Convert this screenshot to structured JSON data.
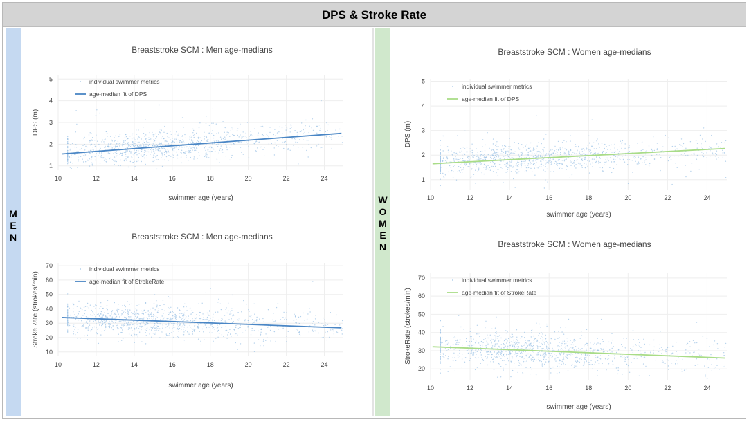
{
  "page_title": "DPS & Stroke Rate",
  "colors": {
    "men_strip": "#c5d9f1",
    "women_strip": "#d0e8cc",
    "men_line": "#4a86c5",
    "women_line": "#a9dc87",
    "scatter": "#9ec3e6"
  },
  "sections": {
    "men_label": "MEN",
    "women_label": "WOMEN"
  },
  "chart_data": [
    {
      "id": "men-dps",
      "type": "scatter",
      "title": "Breaststroke SCM : Men age-medians",
      "xlabel": "swimmer age (years)",
      "ylabel": "DPS (m)",
      "xlim": [
        10,
        25
      ],
      "ylim": [
        0.8,
        5.2
      ],
      "xticks": [
        10,
        12,
        14,
        16,
        18,
        20,
        22,
        24
      ],
      "yticks": [
        1,
        2,
        3,
        4,
        5
      ],
      "grid": true,
      "legend": "top-left",
      "series": [
        {
          "name": "individual swimmer metrics",
          "kind": "scatter",
          "mean_start": 1.6,
          "mean_end": 2.45,
          "spread": 0.35,
          "count": 1100
        },
        {
          "name": "age-median fit of DPS",
          "kind": "line",
          "x": [
            10.2,
            24.9
          ],
          "y": [
            1.55,
            2.5
          ]
        }
      ]
    },
    {
      "id": "men-sr",
      "type": "scatter",
      "title": "Breaststroke SCM : Men age-medians",
      "xlabel": "swimmer age (years)",
      "ylabel": "StrokeRate (strokes/min)",
      "xlim": [
        10,
        25
      ],
      "ylim": [
        7,
        72
      ],
      "xticks": [
        10,
        12,
        14,
        16,
        18,
        20,
        22,
        24
      ],
      "yticks": [
        10,
        20,
        30,
        40,
        50,
        60,
        70
      ],
      "grid": true,
      "legend": "top-left",
      "series": [
        {
          "name": "individual swimmer metrics",
          "kind": "scatter",
          "mean_start": 34,
          "mean_end": 27,
          "spread": 5.5,
          "count": 1100
        },
        {
          "name": "age-median fit of StrokeRate",
          "kind": "line",
          "x": [
            10.2,
            24.9
          ],
          "y": [
            34,
            26.8
          ]
        }
      ]
    },
    {
      "id": "women-dps",
      "type": "scatter",
      "title": "Breaststroke SCM : Women age-medians",
      "xlabel": "swimmer age (years)",
      "ylabel": "DPS (m)",
      "xlim": [
        10,
        25
      ],
      "ylim": [
        0.6,
        5.1
      ],
      "xticks": [
        10,
        12,
        14,
        16,
        18,
        20,
        22,
        24
      ],
      "yticks": [
        1,
        2,
        3,
        4,
        5
      ],
      "grid": true,
      "legend": "top-left",
      "series": [
        {
          "name": "individual swimmer metrics",
          "kind": "scatter",
          "mean_start": 1.7,
          "mean_end": 2.2,
          "spread": 0.3,
          "count": 1100
        },
        {
          "name": "age-median fit of DPS",
          "kind": "line",
          "x": [
            10.1,
            24.9
          ],
          "y": [
            1.65,
            2.27
          ]
        }
      ]
    },
    {
      "id": "women-sr",
      "type": "scatter",
      "title": "Breaststroke SCM : Women age-medians",
      "xlabel": "swimmer age (years)",
      "ylabel": "StrokeRate (strokes/min)",
      "xlim": [
        10,
        25
      ],
      "ylim": [
        14,
        73
      ],
      "xticks": [
        10,
        12,
        14,
        16,
        18,
        20,
        22,
        24
      ],
      "yticks": [
        20,
        30,
        40,
        50,
        60,
        70
      ],
      "grid": true,
      "legend": "top-left",
      "series": [
        {
          "name": "individual swimmer metrics",
          "kind": "scatter",
          "mean_start": 32,
          "mean_end": 26,
          "spread": 5,
          "count": 1100
        },
        {
          "name": "age-median fit of StrokeRate",
          "kind": "line",
          "x": [
            10.1,
            24.9
          ],
          "y": [
            32.2,
            26
          ]
        }
      ]
    }
  ]
}
